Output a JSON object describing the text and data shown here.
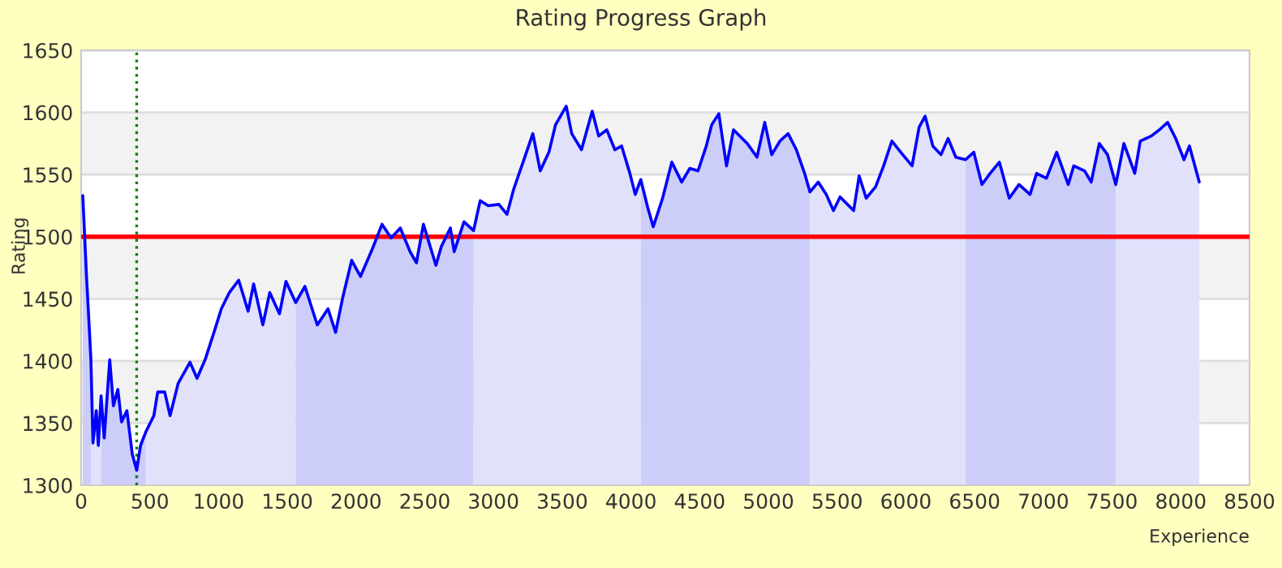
{
  "chart_data": {
    "type": "line",
    "title": "Rating Progress Graph",
    "xlabel": "Experience",
    "ylabel": "Rating",
    "xlim": [
      0,
      8500
    ],
    "xticks": [
      0,
      500,
      1000,
      1500,
      2000,
      2500,
      3000,
      3500,
      4000,
      4500,
      5000,
      5500,
      6000,
      6500,
      7000,
      7500,
      8000,
      8500
    ],
    "ylim": [
      1300,
      1650
    ],
    "yticks": [
      1300,
      1350,
      1400,
      1450,
      1500,
      1550,
      1600,
      1650
    ],
    "grid": "y",
    "legend": false,
    "marker": "none",
    "line_style": "solid",
    "series": [
      {
        "type": "area",
        "color": "#cdcdf9",
        "x": [
          12,
          39,
          58,
          71
        ],
        "values": [
          1533,
          1468,
          1429,
          1401
        ]
      },
      {
        "type": "area",
        "color": "#e1e1fb",
        "x": [
          71,
          86,
          110,
          125,
          145
        ],
        "values": [
          1401,
          1334,
          1360,
          1332,
          1372
        ]
      },
      {
        "type": "area",
        "color": "#cdcdf9",
        "x": [
          145,
          168,
          208,
          235,
          267,
          294,
          333,
          372,
          404,
          432,
          471
        ],
        "values": [
          1372,
          1338,
          1401,
          1364,
          1377,
          1351,
          1360,
          1325,
          1312,
          1332,
          1343
        ]
      },
      {
        "type": "area",
        "color": "#e1e1fb",
        "x": [
          471,
          529,
          557,
          608,
          647,
          706,
          792,
          843,
          902,
          972,
          1020,
          1078,
          1146,
          1215,
          1255,
          1322,
          1372,
          1443,
          1490,
          1561
        ],
        "values": [
          1343,
          1356,
          1375,
          1375,
          1356,
          1382,
          1399,
          1386,
          1401,
          1425,
          1442,
          1455,
          1465,
          1440,
          1462,
          1429,
          1455,
          1438,
          1464,
          1447
        ]
      },
      {
        "type": "area",
        "color": "#cdcdf9",
        "x": [
          1561,
          1628,
          1718,
          1796,
          1851,
          1903,
          1968,
          2032,
          2118,
          2189,
          2255,
          2322,
          2393,
          2439,
          2490,
          2581,
          2620,
          2686,
          2714,
          2785,
          2855
        ],
        "values": [
          1447,
          1460,
          1429,
          1442,
          1423,
          1451,
          1481,
          1468,
          1490,
          1510,
          1499,
          1507,
          1488,
          1479,
          1510,
          1477,
          1492,
          1507,
          1488,
          1512,
          1505
        ]
      },
      {
        "type": "area",
        "color": "#e1e1fb",
        "x": [
          2855,
          2903,
          2961,
          3039,
          3098,
          3146,
          3215,
          3286,
          3340,
          3403,
          3451,
          3529,
          3569,
          3640,
          3718,
          3765,
          3824,
          3883,
          3932,
          3992,
          4031,
          4071
        ],
        "values": [
          1505,
          1529,
          1525,
          1526,
          1518,
          1538,
          1560,
          1583,
          1553,
          1568,
          1590,
          1605,
          1583,
          1570,
          1601,
          1581,
          1586,
          1570,
          1573,
          1551,
          1534,
          1546
        ]
      },
      {
        "type": "area",
        "color": "#cdcdf9",
        "x": [
          4071,
          4123,
          4162,
          4230,
          4297,
          4369,
          4428,
          4488,
          4548,
          4587,
          4639,
          4695,
          4746,
          4846,
          4917,
          4973,
          5024,
          5084,
          5143,
          5203,
          5263,
          5302
        ],
        "values": [
          1546,
          1523,
          1508,
          1531,
          1560,
          1544,
          1555,
          1553,
          1573,
          1590,
          1599,
          1557,
          1586,
          1575,
          1564,
          1592,
          1566,
          1577,
          1583,
          1570,
          1551,
          1536
        ]
      },
      {
        "type": "area",
        "color": "#e1e1fb",
        "x": [
          5302,
          5362,
          5421,
          5473,
          5521,
          5620,
          5660,
          5711,
          5779,
          5838,
          5898,
          5977,
          6045,
          6096,
          6140,
          6196,
          6255,
          6307,
          6363,
          6434
        ],
        "values": [
          1536,
          1544,
          1534,
          1521,
          1532,
          1521,
          1549,
          1531,
          1540,
          1557,
          1577,
          1566,
          1557,
          1588,
          1597,
          1573,
          1566,
          1579,
          1564,
          1562
        ]
      },
      {
        "type": "area",
        "color": "#cdcdf9",
        "x": [
          6434,
          6494,
          6553,
          6613,
          6680,
          6752,
          6823,
          6903,
          6951,
          7022,
          7097,
          7181,
          7221,
          7300,
          7348,
          7407,
          7467,
          7527
        ],
        "values": [
          1562,
          1568,
          1542,
          1551,
          1560,
          1531,
          1542,
          1534,
          1551,
          1547,
          1568,
          1542,
          1557,
          1553,
          1544,
          1575,
          1566,
          1542
        ]
      },
      {
        "type": "area",
        "color": "#e1e1fb",
        "x": [
          7527,
          7586,
          7665,
          7705,
          7785,
          7844,
          7904,
          7963,
          8023,
          8063,
          8134
        ],
        "values": [
          1542,
          1575,
          1551,
          1577,
          1581,
          1586,
          1592,
          1579,
          1562,
          1573,
          1544
        ]
      },
      {
        "color": "#0000ff",
        "x": [
          12,
          39,
          58,
          71,
          86,
          110,
          125,
          145,
          168,
          208,
          235,
          267,
          294,
          333,
          372,
          404,
          432,
          471,
          529,
          557,
          608,
          647,
          706,
          792,
          843,
          902,
          972,
          1020,
          1078,
          1146,
          1215,
          1255,
          1322,
          1372,
          1443,
          1490,
          1561,
          1628,
          1718,
          1796,
          1851,
          1903,
          1968,
          2032,
          2118,
          2189,
          2255,
          2322,
          2393,
          2439,
          2490,
          2581,
          2620,
          2686,
          2714,
          2785,
          2855,
          2903,
          2961,
          3039,
          3098,
          3146,
          3215,
          3286,
          3340,
          3403,
          3451,
          3529,
          3569,
          3640,
          3718,
          3765,
          3824,
          3883,
          3932,
          3992,
          4031,
          4071,
          4123,
          4162,
          4230,
          4297,
          4369,
          4428,
          4488,
          4548,
          4587,
          4639,
          4695,
          4746,
          4846,
          4917,
          4973,
          5024,
          5084,
          5143,
          5203,
          5263,
          5302,
          5362,
          5421,
          5473,
          5521,
          5620,
          5660,
          5711,
          5779,
          5838,
          5898,
          5977,
          6045,
          6096,
          6140,
          6196,
          6255,
          6307,
          6363,
          6434,
          6494,
          6553,
          6613,
          6680,
          6752,
          6823,
          6903,
          6951,
          7022,
          7097,
          7181,
          7221,
          7300,
          7348,
          7407,
          7467,
          7527,
          7586,
          7665,
          7705,
          7785,
          7844,
          7904,
          7963,
          8023,
          8063,
          8134
        ],
        "values": [
          1533,
          1468,
          1429,
          1401,
          1334,
          1360,
          1332,
          1372,
          1338,
          1401,
          1364,
          1377,
          1351,
          1360,
          1325,
          1312,
          1332,
          1343,
          1356,
          1375,
          1375,
          1356,
          1382,
          1399,
          1386,
          1401,
          1425,
          1442,
          1455,
          1465,
          1440,
          1462,
          1429,
          1455,
          1438,
          1464,
          1447,
          1460,
          1429,
          1442,
          1423,
          1451,
          1481,
          1468,
          1490,
          1510,
          1499,
          1507,
          1488,
          1479,
          1510,
          1477,
          1492,
          1507,
          1488,
          1512,
          1505,
          1529,
          1525,
          1526,
          1518,
          1538,
          1560,
          1583,
          1553,
          1568,
          1590,
          1605,
          1583,
          1570,
          1601,
          1581,
          1586,
          1570,
          1573,
          1551,
          1534,
          1546,
          1523,
          1508,
          1531,
          1560,
          1544,
          1555,
          1553,
          1573,
          1590,
          1599,
          1557,
          1586,
          1575,
          1564,
          1592,
          1566,
          1577,
          1583,
          1570,
          1551,
          1536,
          1544,
          1534,
          1521,
          1532,
          1521,
          1549,
          1531,
          1540,
          1557,
          1577,
          1566,
          1557,
          1588,
          1597,
          1573,
          1566,
          1579,
          1564,
          1562,
          1568,
          1542,
          1551,
          1560,
          1531,
          1542,
          1534,
          1551,
          1547,
          1568,
          1542,
          1557,
          1553,
          1544,
          1575,
          1566,
          1542,
          1575,
          1551,
          1577,
          1581,
          1586,
          1592,
          1579,
          1562,
          1573,
          1544
        ]
      }
    ],
    "ref_lines": [
      {
        "axis": "y",
        "value": 1500,
        "color": "#ff0000",
        "line_style": "solid"
      },
      {
        "axis": "x",
        "value": 404,
        "color": "#008000",
        "line_style": "dotted"
      }
    ]
  }
}
